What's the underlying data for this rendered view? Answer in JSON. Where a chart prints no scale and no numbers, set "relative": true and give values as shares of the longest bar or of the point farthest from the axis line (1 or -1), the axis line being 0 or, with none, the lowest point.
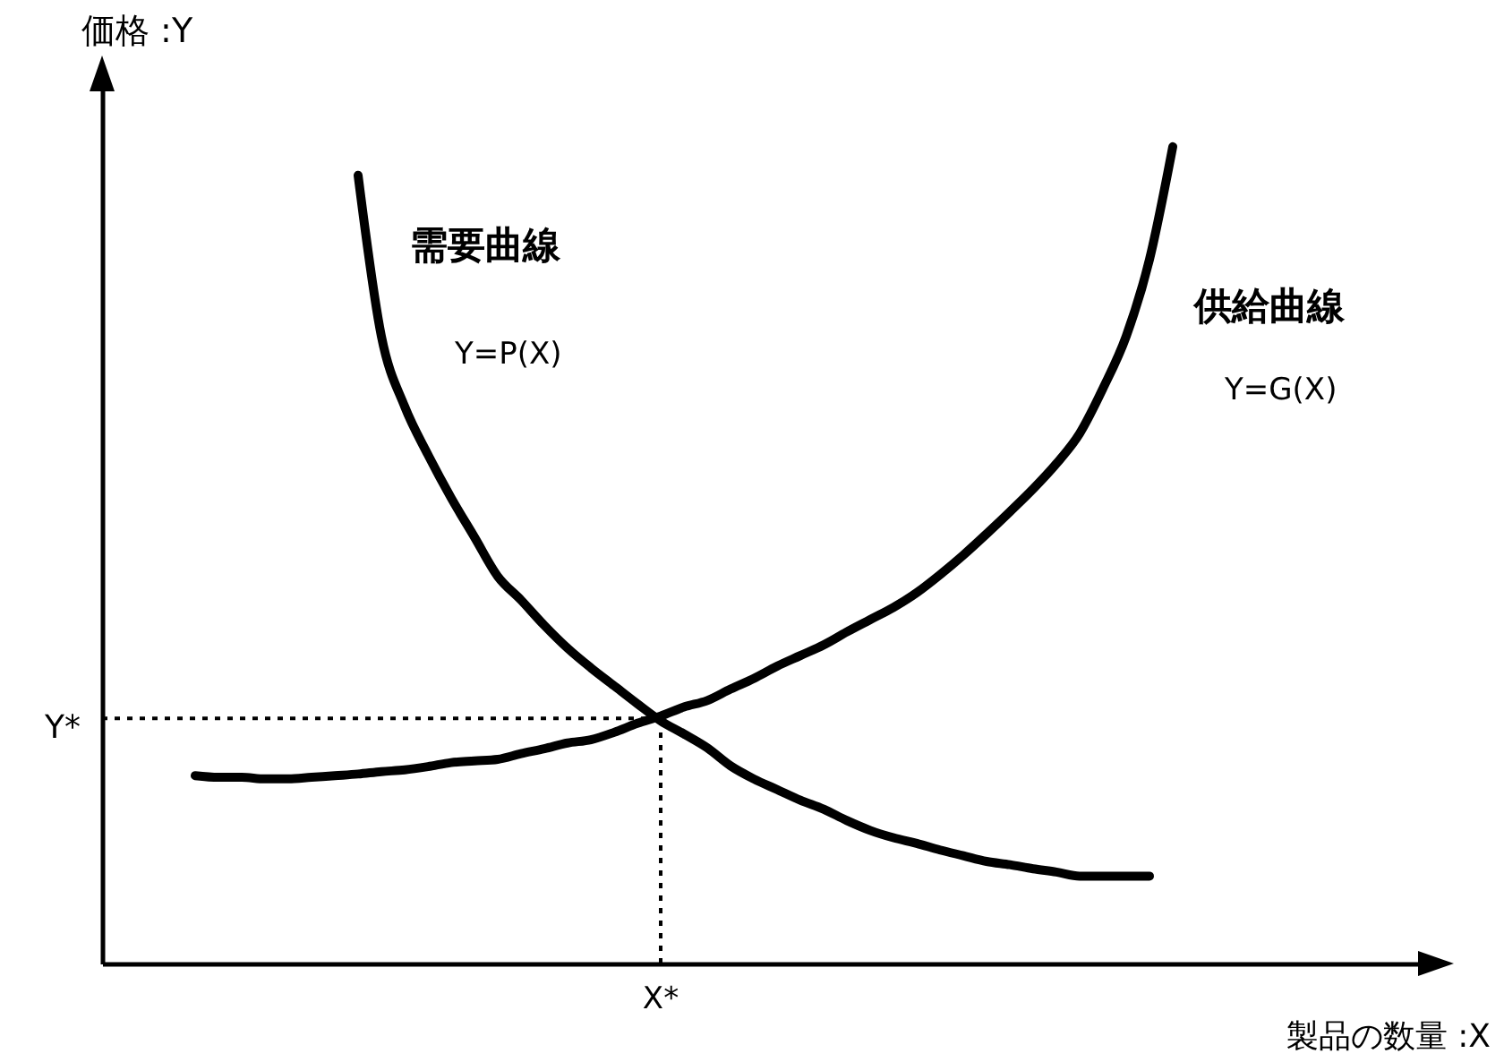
{
  "chart_data": {
    "type": "line",
    "relative": true,
    "xlabel": "製品の数量 :X",
    "ylabel": "価格 :Y",
    "categories": [
      null,
      null,
      null,
      null,
      null,
      null,
      null,
      null,
      null,
      null,
      null,
      null,
      null,
      null,
      null,
      null,
      null,
      null,
      null,
      null,
      null,
      null,
      null,
      null,
      null,
      null,
      null,
      null,
      null,
      null,
      null,
      null,
      null,
      null,
      null,
      null,
      null,
      null,
      null,
      null,
      null,
      null,
      null,
      null,
      null,
      null,
      null,
      null,
      null,
      null,
      null,
      null,
      null,
      null,
      null,
      null,
      null,
      null
    ],
    "series": [
      {
        "name": "需要曲線",
        "color": "#000000",
        "values": [
          null,
          null,
          null,
          null,
          null,
          null,
          null,
          null,
          null,
          null,
          null,
          0.965,
          0.768,
          0.682,
          0.623,
          0.57,
          0.522,
          0.474,
          0.445,
          0.414,
          0.386,
          0.362,
          0.34,
          0.318,
          0.297,
          0.281,
          0.264,
          0.242,
          0.226,
          0.213,
          0.2,
          0.189,
          0.175,
          0.163,
          0.154,
          0.147,
          0.139,
          0.132,
          0.125,
          0.121,
          0.116,
          0.112,
          0.107,
          0.107,
          0.107,
          0.107,
          null,
          null,
          null,
          null,
          null,
          null,
          null,
          null,
          null,
          null,
          null,
          null
        ]
      },
      {
        "name": "供給曲線",
        "color": "#000000",
        "values": [
          null,
          null,
          null,
          null,
          0.23,
          0.228,
          0.228,
          0.226,
          0.226,
          0.228,
          0.23,
          0.232,
          0.235,
          0.237,
          0.241,
          0.246,
          0.248,
          0.25,
          0.257,
          0.263,
          0.27,
          0.274,
          0.283,
          0.294,
          0.303,
          0.314,
          0.322,
          0.336,
          0.349,
          0.364,
          0.377,
          0.39,
          0.406,
          0.421,
          0.436,
          0.454,
          0.476,
          0.5,
          0.526,
          0.553,
          0.581,
          0.612,
          0.649,
          0.704,
          0.768,
          0.862,
          1,
          null,
          null,
          null,
          null,
          null,
          null,
          null,
          null,
          null,
          null,
          null
        ]
      }
    ],
    "annotations": [
      "Y=P(X)",
      "Y=G(X)"
    ],
    "ref_lines": [
      {
        "axis": "y",
        "value": 0.3,
        "label": "Y*",
        "line_style": "dotted"
      },
      {
        "axis": "x",
        "label": "X*",
        "line_style": "dotted"
      }
    ]
  }
}
